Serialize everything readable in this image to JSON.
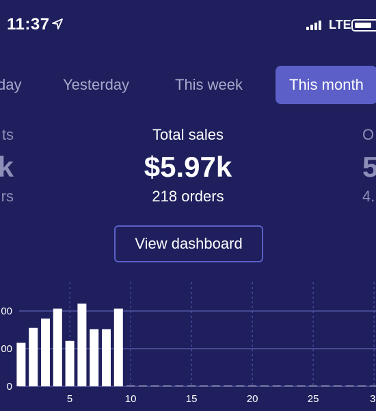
{
  "status_bar": {
    "time": "11:37",
    "network": "LTE",
    "icons": [
      "location-arrow-icon",
      "signal-icon",
      "battery-icon"
    ]
  },
  "tabs": [
    {
      "label": "day",
      "active": false
    },
    {
      "label": "Yesterday",
      "active": false
    },
    {
      "label": "This week",
      "active": false
    },
    {
      "label": "This month",
      "active": true
    }
  ],
  "stats": {
    "left": {
      "label": "ts",
      "value": "k",
      "sub": "rs"
    },
    "center": {
      "label": "Total sales",
      "value": "$5.97k",
      "sub": "218 orders"
    },
    "right": {
      "label": "O",
      "value": "5",
      "sub": "4."
    }
  },
  "dashboard_button": {
    "label": "View dashboard"
  },
  "colors": {
    "background": "#1e1f5c",
    "accent": "#5b5fc7",
    "muted_text": "#8e8fb8",
    "bar": "#ffffff"
  },
  "chart_data": {
    "type": "bar",
    "x": [
      1,
      2,
      3,
      4,
      5,
      6,
      7,
      8,
      9
    ],
    "values": [
      350,
      470,
      545,
      625,
      365,
      665,
      460,
      460,
      625
    ],
    "x_ticks": [
      "5",
      "10",
      "15",
      "20",
      "25",
      "3"
    ],
    "y_ticks": [
      "0",
      "00",
      "00"
    ],
    "xlim": [
      0.5,
      31.5
    ],
    "ylim": [
      0,
      1000
    ],
    "grid": true
  }
}
